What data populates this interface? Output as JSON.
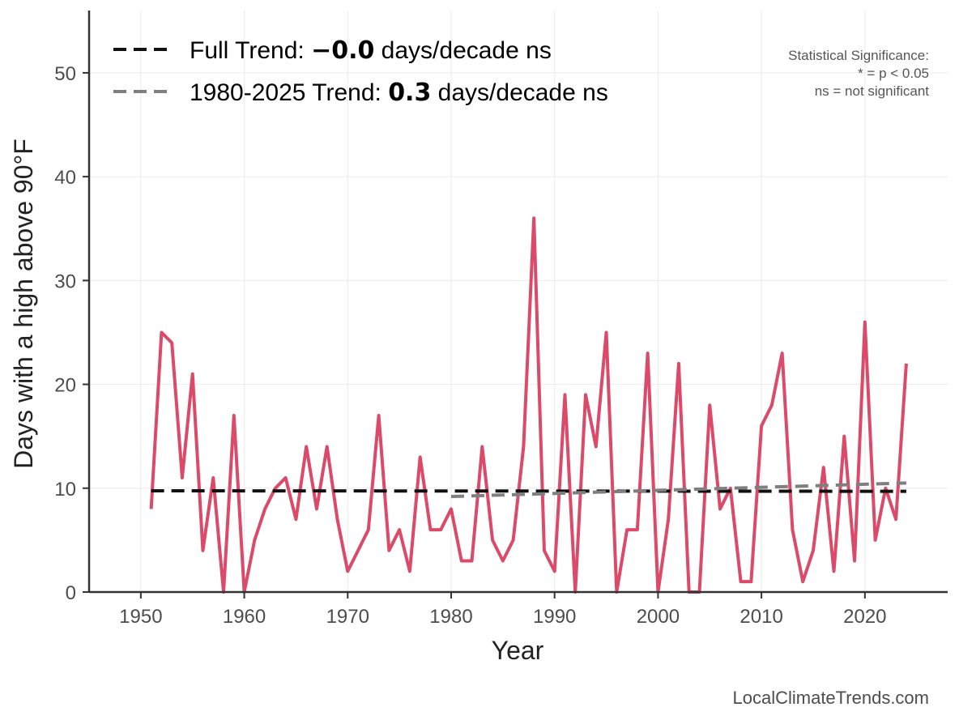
{
  "chart_data": {
    "type": "line",
    "xlabel": "Year",
    "ylabel": "Days with a high above 90°F",
    "xlim": [
      1945,
      2028
    ],
    "ylim": [
      0,
      56
    ],
    "xticks": [
      1950,
      1960,
      1970,
      1980,
      1990,
      2000,
      2010,
      2020
    ],
    "yticks": [
      0,
      10,
      20,
      30,
      40,
      50
    ],
    "grid": true,
    "series": [
      {
        "name": "Days with a high above 90°F",
        "color": "#dc4a6a",
        "x": [
          1951,
          1952,
          1953,
          1954,
          1955,
          1956,
          1957,
          1958,
          1959,
          1960,
          1961,
          1962,
          1963,
          1964,
          1965,
          1966,
          1967,
          1968,
          1969,
          1970,
          1971,
          1972,
          1973,
          1974,
          1975,
          1976,
          1977,
          1978,
          1979,
          1980,
          1981,
          1982,
          1983,
          1984,
          1985,
          1986,
          1987,
          1988,
          1989,
          1990,
          1991,
          1992,
          1993,
          1994,
          1995,
          1996,
          1997,
          1998,
          1999,
          2000,
          2001,
          2002,
          2003,
          2004,
          2005,
          2006,
          2007,
          2008,
          2009,
          2010,
          2011,
          2012,
          2013,
          2014,
          2015,
          2016,
          2017,
          2018,
          2019,
          2020,
          2021,
          2022,
          2023,
          2024
        ],
        "values": [
          8,
          25,
          24,
          11,
          21,
          4,
          11,
          0,
          17,
          0,
          5,
          8,
          10,
          11,
          7,
          14,
          8,
          14,
          7,
          2,
          4,
          6,
          17,
          4,
          6,
          2,
          13,
          6,
          6,
          8,
          3,
          3,
          14,
          5,
          3,
          5,
          14,
          36,
          4,
          2,
          19,
          0,
          19,
          14,
          25,
          0,
          6,
          6,
          23,
          0,
          7,
          22,
          0,
          0,
          18,
          8,
          10,
          1,
          1,
          16,
          18,
          23,
          6,
          1,
          4,
          12,
          2,
          15,
          3,
          26,
          5,
          10,
          7,
          22
        ]
      },
      {
        "name": "Full Trend",
        "color": "#111111",
        "dashed": true,
        "x": [
          1951,
          2024
        ],
        "values": [
          9.75,
          9.7
        ]
      },
      {
        "name": "1980-2025 Trend",
        "color": "#7f7f7f",
        "dashed": true,
        "x": [
          1980,
          2024
        ],
        "values": [
          9.2,
          10.5
        ]
      }
    ],
    "legend": [
      {
        "color": "#111111",
        "prefix": "Full Trend: ",
        "value": "−0.0",
        "suffix": " days/decade ns"
      },
      {
        "color": "#7f7f7f",
        "prefix": "1980-2025 Trend: ",
        "value": "0.3",
        "suffix": " days/decade ns"
      }
    ],
    "legend_position": "top-left",
    "significance_note": [
      "Statistical Significance:",
      "* = p < 0.05",
      "ns = not significant"
    ],
    "credit": "LocalClimateTrends.com"
  }
}
